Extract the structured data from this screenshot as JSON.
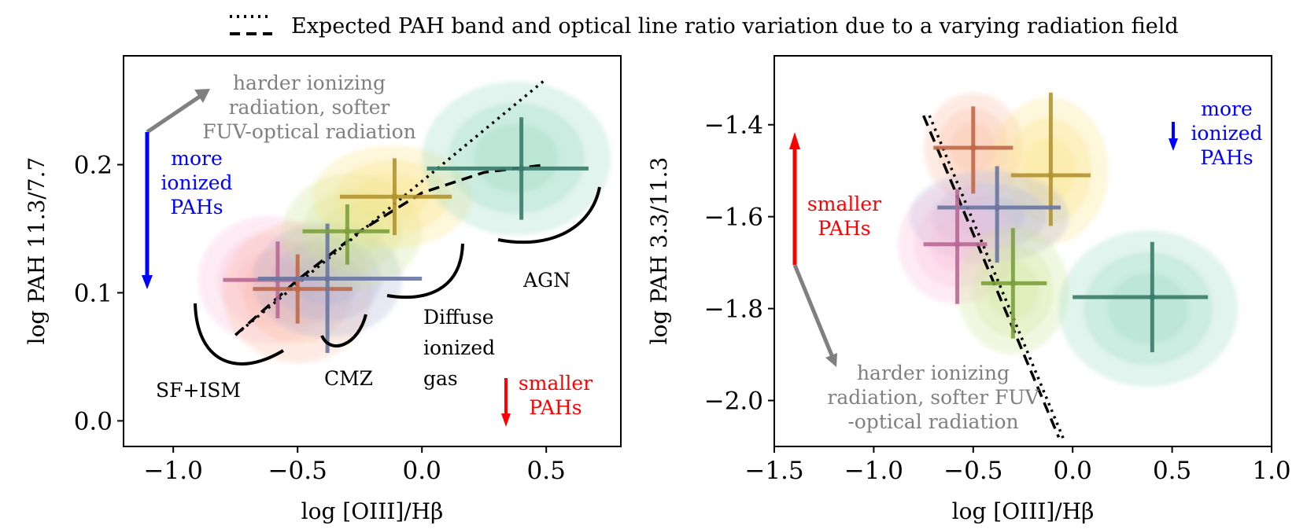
{
  "legend": {
    "label": "Expected PAH band and optical line ratio variation due to a varying radiation field",
    "placement": "top-center",
    "styles": [
      "dotted",
      "dashed"
    ]
  },
  "chart_data": [
    {
      "type": "scatter",
      "xlabel": "log [OIII]/Hβ",
      "ylabel": "log PAH 11.3/7.7",
      "xlim": [
        -1.2,
        0.8
      ],
      "ylim": [
        -0.02,
        0.285
      ],
      "xticks": [
        -1.0,
        -0.5,
        0.0,
        0.5
      ],
      "xtick_labels": [
        "−1.0",
        "−0.5",
        "0.0",
        "0.5"
      ],
      "yticks": [
        0.0,
        0.1,
        0.2
      ],
      "ytick_labels": [
        "0.0",
        "0.1",
        "0.2"
      ],
      "grid": false,
      "density_contours": [
        {
          "color": "#f7a0c8",
          "cx": -0.62,
          "cy": 0.11,
          "rx": 0.28,
          "ry": 0.05
        },
        {
          "color": "#f8a07a",
          "cx": -0.5,
          "cy": 0.1,
          "rx": 0.3,
          "ry": 0.055
        },
        {
          "color": "#8d92c8",
          "cx": -0.38,
          "cy": 0.11,
          "rx": 0.3,
          "ry": 0.045
        },
        {
          "color": "#b8dc6a",
          "cx": -0.28,
          "cy": 0.148,
          "rx": 0.28,
          "ry": 0.045
        },
        {
          "color": "#f8d850",
          "cx": -0.12,
          "cy": 0.175,
          "rx": 0.32,
          "ry": 0.04
        },
        {
          "color": "#6cc8aa",
          "cx": 0.38,
          "cy": 0.205,
          "rx": 0.38,
          "ry": 0.06
        }
      ],
      "points": [
        {
          "name": "SF+ISM (pink)",
          "color": "#b86a95",
          "x": -0.58,
          "y": 0.11,
          "xerr_low": 0.22,
          "xerr_high": 0.1,
          "yerr_low": 0.03,
          "yerr_high": 0.03
        },
        {
          "name": "SF+ISM (orange)",
          "color": "#c06a48",
          "x": -0.5,
          "y": 0.103,
          "xerr_low": 0.18,
          "xerr_high": 0.22,
          "yerr_low": 0.027,
          "yerr_high": 0.027
        },
        {
          "name": "CMZ",
          "color": "#6a76a0",
          "x": -0.38,
          "y": 0.111,
          "xerr_low": 0.28,
          "xerr_high": 0.38,
          "yerr_low": 0.058,
          "yerr_high": 0.043
        },
        {
          "name": "Diffuse ionized gas (green)",
          "color": "#7ea040",
          "x": -0.3,
          "y": 0.148,
          "xerr_low": 0.18,
          "xerr_high": 0.17,
          "yerr_low": 0.026,
          "yerr_high": 0.021
        },
        {
          "name": "Diffuse ionized gas (yellow)",
          "color": "#b29432",
          "x": -0.11,
          "y": 0.175,
          "xerr_low": 0.22,
          "xerr_high": 0.23,
          "yerr_low": 0.03,
          "yerr_high": 0.03
        },
        {
          "name": "AGN",
          "color": "#3c7c6a",
          "x": 0.4,
          "y": 0.197,
          "xerr_low": 0.38,
          "xerr_high": 0.27,
          "yerr_low": 0.04,
          "yerr_high": 0.04
        }
      ],
      "dotted_line": {
        "x": [
          -0.75,
          0.5
        ],
        "y": [
          0.067,
          0.267
        ]
      },
      "dashed_line": {
        "x": [
          -0.75,
          -0.5,
          -0.25,
          0.0,
          0.25,
          0.5
        ],
        "y": [
          0.067,
          0.11,
          0.148,
          0.178,
          0.194,
          0.2
        ]
      },
      "annotations": {
        "harder_radiation": [
          "harder ionizing",
          "radiation, softer",
          "FUV-optical radiation"
        ],
        "more_ionized": [
          "more",
          "ionized",
          "PAHs"
        ],
        "smaller_pahs": [
          "smaller",
          "PAHs"
        ],
        "group_labels": [
          "SF+ISM",
          "CMZ",
          "Diffuse",
          "ionized",
          "gas",
          "AGN"
        ]
      }
    },
    {
      "type": "scatter",
      "xlabel": "log [OIII]/Hβ",
      "ylabel": "log PAH 3.3/11.3",
      "xlim": [
        -1.5,
        1.0
      ],
      "ylim": [
        -2.1,
        -1.25
      ],
      "xticks": [
        -1.5,
        -1.0,
        -0.5,
        0.0,
        0.5,
        1.0
      ],
      "xtick_labels": [
        "−1.5",
        "−1.0",
        "−0.5",
        "0.0",
        "0.5",
        "1.0"
      ],
      "yticks": [
        -1.4,
        -1.6,
        -1.8,
        -2.0
      ],
      "ytick_labels": [
        "−1.4",
        "−1.6",
        "−1.8",
        "−2.0"
      ],
      "grid": false,
      "density_contours": [
        {
          "color": "#f8a07a",
          "cx": -0.5,
          "cy": -1.45,
          "rx": 0.25,
          "ry": 0.12
        },
        {
          "color": "#f8d850",
          "cx": -0.12,
          "cy": -1.5,
          "rx": 0.3,
          "ry": 0.16
        },
        {
          "color": "#8d92c8",
          "cx": -0.42,
          "cy": -1.6,
          "rx": 0.4,
          "ry": 0.1
        },
        {
          "color": "#f7a0c8",
          "cx": -0.58,
          "cy": -1.66,
          "rx": 0.3,
          "ry": 0.13
        },
        {
          "color": "#b8dc6a",
          "cx": -0.3,
          "cy": -1.76,
          "rx": 0.28,
          "ry": 0.14
        },
        {
          "color": "#6cc8aa",
          "cx": 0.38,
          "cy": -1.8,
          "rx": 0.45,
          "ry": 0.17
        }
      ],
      "points": [
        {
          "name": "SF+ISM (orange)",
          "color": "#c06a48",
          "x": -0.5,
          "y": -1.45,
          "xerr_low": 0.2,
          "xerr_high": 0.2,
          "yerr_low": 0.1,
          "yerr_high": 0.09
        },
        {
          "name": "Diffuse ionized gas (yellow)",
          "color": "#b29432",
          "x": -0.11,
          "y": -1.51,
          "xerr_low": 0.2,
          "xerr_high": 0.2,
          "yerr_low": 0.11,
          "yerr_high": 0.18
        },
        {
          "name": "CMZ",
          "color": "#6a76a0",
          "x": -0.38,
          "y": -1.58,
          "xerr_low": 0.3,
          "xerr_high": 0.32,
          "yerr_low": 0.12,
          "yerr_high": 0.09
        },
        {
          "name": "SF+ISM (pink)",
          "color": "#b86a95",
          "x": -0.58,
          "y": -1.66,
          "xerr_low": 0.17,
          "xerr_high": 0.15,
          "yerr_low": 0.13,
          "yerr_high": 0.12
        },
        {
          "name": "Diffuse ionized gas (green)",
          "color": "#7ea040",
          "x": -0.3,
          "y": -1.745,
          "xerr_low": 0.16,
          "xerr_high": 0.17,
          "yerr_low": 0.12,
          "yerr_high": 0.12
        },
        {
          "name": "AGN",
          "color": "#3c7c6a",
          "x": 0.4,
          "y": -1.775,
          "xerr_low": 0.4,
          "xerr_high": 0.28,
          "yerr_low": 0.12,
          "yerr_high": 0.12
        }
      ],
      "dotted_line": {
        "x": [
          -0.72,
          -0.04
        ],
        "y": [
          -1.38,
          -2.09
        ]
      },
      "dashed_line": {
        "x": [
          -0.75,
          -0.07
        ],
        "y": [
          -1.38,
          -2.08
        ]
      },
      "annotations": {
        "harder_radiation": [
          "harder ionizing",
          "radiation, softer FUV",
          "-optical radiation"
        ],
        "more_ionized": [
          "more",
          "ionized",
          "PAHs"
        ],
        "smaller_pahs": [
          "smaller",
          "PAHs"
        ]
      }
    }
  ],
  "colors": {
    "gray_arrow": "#808080",
    "blue_arrow": "#0000ff",
    "red_arrow": "#ff0000",
    "legend_line": "#000000"
  }
}
